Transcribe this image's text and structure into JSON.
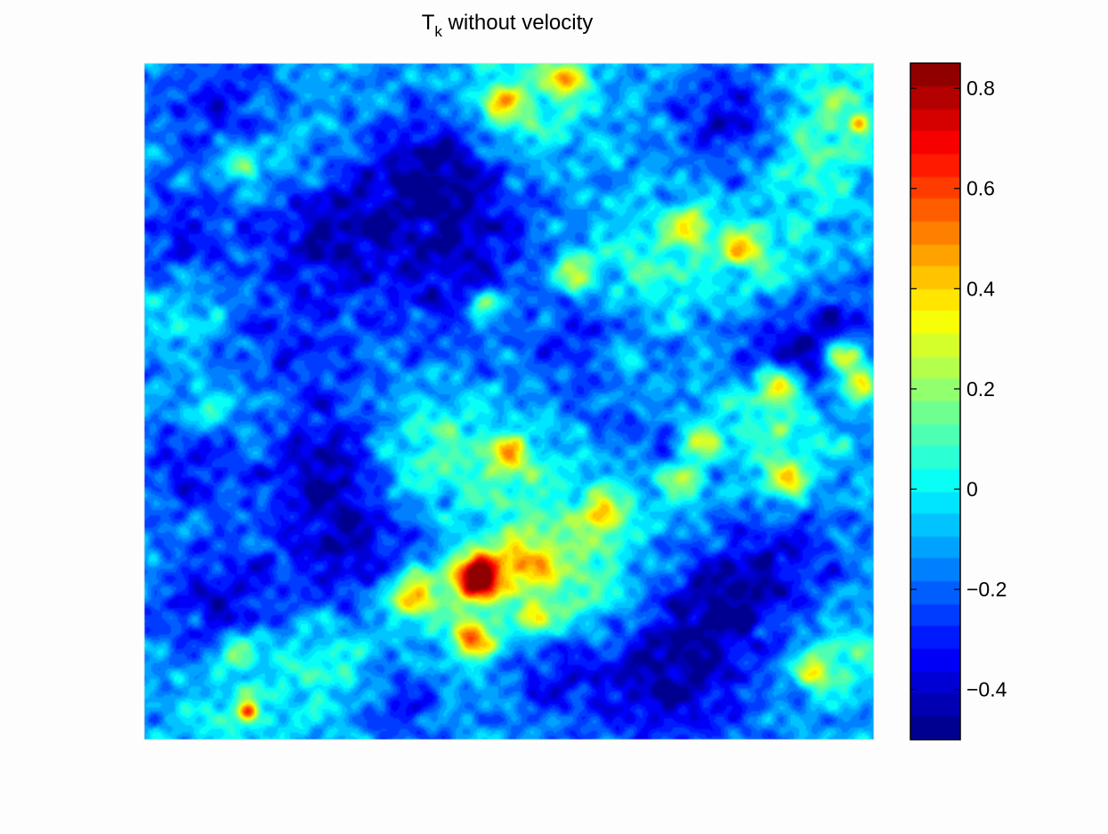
{
  "chart_data": {
    "type": "heatmap",
    "title": {
      "main": "T",
      "subscript": "k",
      "rest": " without velocity"
    },
    "xlabel": "",
    "ylabel": "",
    "colormap": "jet",
    "colorbar": {
      "range": [
        -0.5,
        0.85
      ],
      "ticks": [
        {
          "value": -0.4,
          "label": "−0.4"
        },
        {
          "value": -0.2,
          "label": "−0.2"
        },
        {
          "value": 0,
          "label": "0"
        },
        {
          "value": 0.2,
          "label": "0.2"
        },
        {
          "value": 0.4,
          "label": "0.4"
        },
        {
          "value": 0.6,
          "label": "0.6"
        },
        {
          "value": 0.8,
          "label": "0.8"
        }
      ]
    },
    "field": {
      "background": -0.12,
      "blobs": [
        [
          0.25,
          0.24,
          0.07,
          -0.3
        ],
        [
          0.4,
          0.15,
          0.06,
          -0.3
        ],
        [
          0.45,
          0.3,
          0.09,
          -0.3
        ],
        [
          0.6,
          0.4,
          0.06,
          -0.25
        ],
        [
          0.18,
          0.45,
          0.08,
          -0.2
        ],
        [
          0.06,
          0.6,
          0.05,
          -0.2
        ],
        [
          0.25,
          0.6,
          0.06,
          -0.25
        ],
        [
          0.3,
          0.73,
          0.08,
          -0.3
        ],
        [
          0.1,
          0.8,
          0.06,
          -0.25
        ],
        [
          0.72,
          0.9,
          0.08,
          -0.35
        ],
        [
          0.8,
          0.79,
          0.05,
          -0.25
        ],
        [
          0.88,
          0.73,
          0.06,
          -0.2
        ],
        [
          0.86,
          0.45,
          0.06,
          -0.25
        ],
        [
          0.95,
          0.4,
          0.05,
          -0.25
        ],
        [
          0.7,
          0.55,
          0.06,
          -0.2
        ],
        [
          0.05,
          0.25,
          0.05,
          -0.2
        ],
        [
          0.55,
          0.9,
          0.05,
          -0.2
        ],
        [
          0.1,
          0.06,
          0.06,
          -0.2
        ],
        [
          0.8,
          0.08,
          0.05,
          -0.25
        ],
        [
          0.35,
          0.95,
          0.04,
          -0.2
        ],
        [
          0.52,
          0.06,
          0.06,
          0.22
        ],
        [
          0.95,
          0.05,
          0.05,
          0.2
        ],
        [
          0.92,
          0.15,
          0.05,
          0.18
        ],
        [
          0.7,
          0.3,
          0.06,
          0.2
        ],
        [
          0.55,
          0.35,
          0.07,
          0.18
        ],
        [
          0.86,
          0.3,
          0.05,
          0.15
        ],
        [
          0.8,
          0.5,
          0.05,
          0.2
        ],
        [
          0.88,
          0.55,
          0.05,
          0.22
        ],
        [
          0.5,
          0.63,
          0.07,
          0.18
        ],
        [
          0.35,
          0.62,
          0.05,
          0.15
        ],
        [
          0.58,
          0.73,
          0.05,
          0.2
        ],
        [
          0.62,
          0.8,
          0.05,
          0.18
        ],
        [
          0.25,
          0.88,
          0.06,
          0.2
        ],
        [
          0.12,
          0.96,
          0.05,
          0.15
        ],
        [
          0.15,
          0.5,
          0.05,
          0.15
        ],
        [
          0.06,
          0.38,
          0.04,
          0.15
        ],
        [
          0.4,
          0.55,
          0.05,
          0.15
        ],
        [
          0.67,
          0.62,
          0.05,
          0.15
        ],
        [
          0.2,
          0.15,
          0.05,
          0.12
        ],
        [
          0.47,
          0.85,
          0.05,
          0.15
        ],
        [
          0.97,
          0.88,
          0.04,
          0.18
        ],
        [
          0.36,
          0.78,
          0.04,
          0.28
        ],
        [
          0.45,
          0.76,
          0.03,
          0.5
        ],
        [
          0.54,
          0.82,
          0.02,
          0.4
        ],
        [
          0.59,
          0.31,
          0.02,
          0.38
        ],
        [
          0.58,
          0.02,
          0.02,
          0.45
        ],
        [
          0.49,
          0.06,
          0.02,
          0.35
        ],
        [
          0.75,
          0.24,
          0.02,
          0.4
        ],
        [
          0.82,
          0.27,
          0.02,
          0.42
        ],
        [
          0.87,
          0.48,
          0.02,
          0.6
        ],
        [
          0.96,
          0.43,
          0.02,
          0.55
        ],
        [
          0.98,
          0.47,
          0.02,
          0.5
        ],
        [
          0.88,
          0.62,
          0.02,
          0.45
        ],
        [
          0.76,
          0.56,
          0.02,
          0.42
        ],
        [
          0.74,
          0.62,
          0.02,
          0.38
        ],
        [
          0.5,
          0.58,
          0.02,
          0.4
        ],
        [
          0.63,
          0.67,
          0.02,
          0.45
        ],
        [
          0.37,
          0.79,
          0.02,
          0.48
        ],
        [
          0.46,
          0.76,
          0.02,
          0.65
        ],
        [
          0.45,
          0.85,
          0.02,
          0.55
        ],
        [
          0.14,
          0.96,
          0.01,
          0.6
        ],
        [
          0.13,
          0.87,
          0.02,
          0.35
        ],
        [
          0.92,
          0.9,
          0.02,
          0.4
        ],
        [
          0.47,
          0.36,
          0.02,
          0.35
        ],
        [
          0.08,
          0.51,
          0.02,
          0.25
        ],
        [
          0.98,
          0.09,
          0.01,
          0.4
        ],
        [
          0.13,
          0.15,
          0.02,
          0.3
        ],
        [
          0.52,
          0.74,
          0.03,
          0.4
        ],
        [
          0.65,
          0.44,
          0.02,
          0.25
        ],
        [
          0.69,
          0.5,
          0.02,
          0.2
        ]
      ],
      "noise": [
        {
          "kx": 11.3,
          "ky": 7.9,
          "phase": 0.4,
          "amp": 0.05
        },
        {
          "kx": 6.2,
          "ky": 13.7,
          "phase": 1.9,
          "amp": 0.05
        },
        {
          "kx": 17.5,
          "ky": 15.1,
          "phase": 2.8,
          "amp": 0.04
        },
        {
          "kx": 21.9,
          "ky": 5.3,
          "phase": 0.9,
          "amp": 0.035
        },
        {
          "kx": 4.4,
          "ky": 23.2,
          "phase": 3.7,
          "amp": 0.035
        },
        {
          "kx": 29.1,
          "ky": 26.7,
          "phase": 5.1,
          "amp": 0.03
        },
        {
          "kx": 33.7,
          "ky": 11.2,
          "phase": 2.2,
          "amp": 0.025
        },
        {
          "kx": 14.9,
          "ky": 31.4,
          "phase": 4.4,
          "amp": 0.025
        }
      ],
      "levels": 30
    }
  }
}
